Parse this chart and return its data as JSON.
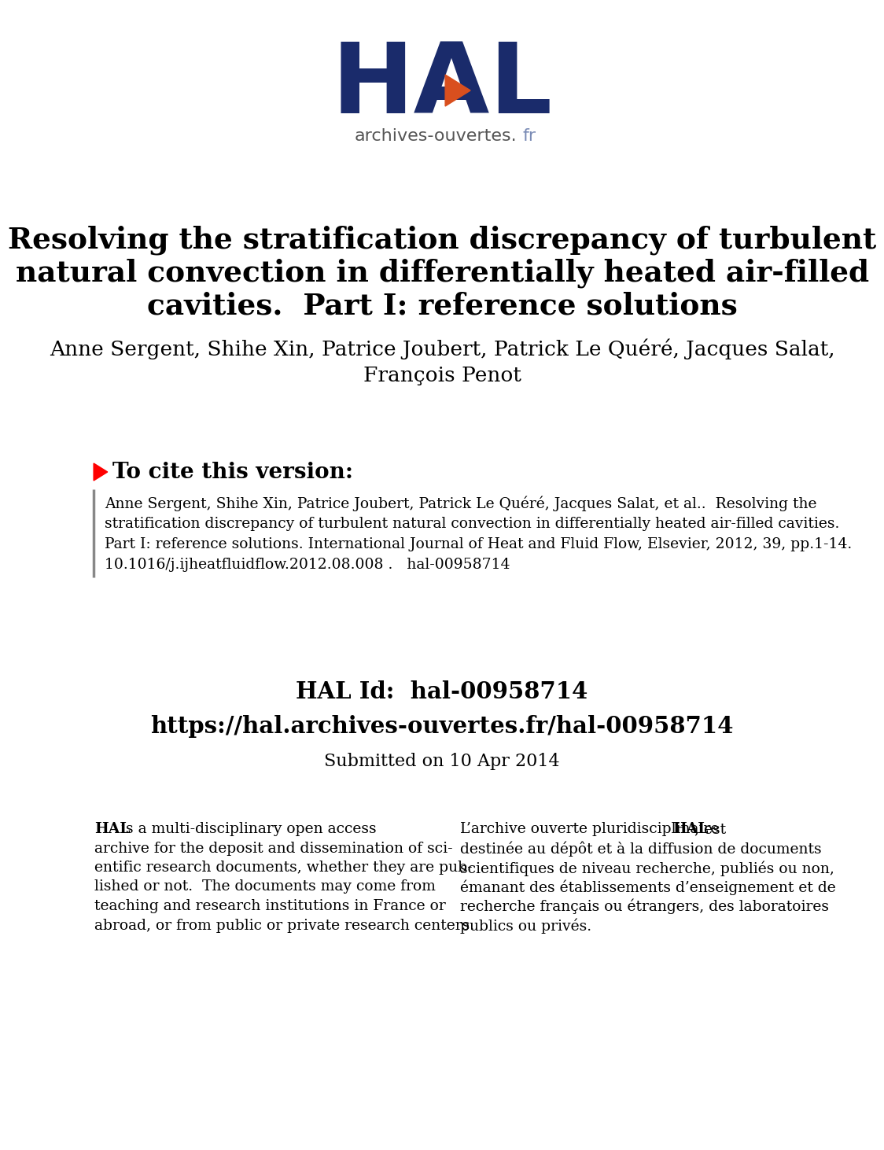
{
  "background_color": "#ffffff",
  "hal_logo_color": "#1a2b6b",
  "hal_orange_color": "#d94f1e",
  "archives_text_color": "#555555",
  "archives_fr_color": "#7a8bb5",
  "title_line1": "Resolving the stratification discrepancy of turbulent",
  "title_line2": "natural convection in differentially heated air-filled",
  "title_line3": "cavities.  Part I: reference solutions",
  "authors_line1": "Anne Sergent, Shihe Xin, Patrice Joubert, Patrick Le Quéré, Jacques Salat,",
  "authors_line2": "François Penot",
  "cite_text_line1": "Anne Sergent, Shihe Xin, Patrice Joubert, Patrick Le Quéré, Jacques Salat, et al..  Resolving the",
  "cite_text_line2": "stratification discrepancy of turbulent natural convection in differentially heated air-filled cavities.",
  "cite_text_line3": "Part I: reference solutions. International Journal of Heat and Fluid Flow, Elsevier, 2012, 39, pp.1-14.",
  "cite_text_line4": "10.1016/j.ijheatfluidflow.2012.08.008 .   hal-00958714",
  "hal_id_label": "HAL Id:  hal-00958714",
  "hal_url": "https://hal.archives-ouvertes.fr/hal-00958714",
  "submitted": "Submitted on 10 Apr 2014",
  "left_col_lines": [
    "HAL is a multi-disciplinary open access",
    "archive for the deposit and dissemination of sci-",
    "entific research documents, whether they are pub-",
    "lished or not.  The documents may come from",
    "teaching and research institutions in France or",
    "abroad, or from public or private research centers."
  ],
  "right_col_lines": [
    "L’archive ouverte pluridisciplinaire HAL, est",
    "destinée au dépôt et à la diffusion de documents",
    "scientifiques de niveau recherche, publiés ou non,",
    "émanant des établissements d’enseignement et de",
    "recherche français ou étrangers, des laboratoires",
    "publics ou privés."
  ]
}
